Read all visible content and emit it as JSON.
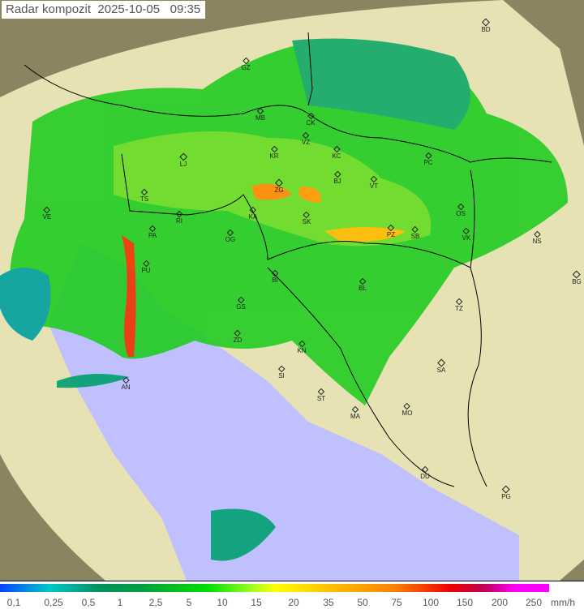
{
  "header": {
    "title": "Radar kompozit  2025-10-05   09:35"
  },
  "map": {
    "colors": {
      "sea": "#c0c0ff",
      "land": "#e8e8b8",
      "outside": "#8a8460"
    },
    "cities": [
      "GZ",
      "MB",
      "CK",
      "VZ",
      "KR",
      "KC",
      "LJ",
      "ZG",
      "BJ",
      "VT",
      "PC",
      "TS",
      "KA",
      "SK",
      "OS",
      "VE",
      "RI",
      "PA",
      "OG",
      "PZ",
      "SB",
      "VK",
      "NS",
      "BD",
      "PU",
      "BI",
      "BL",
      "BG",
      "GS",
      "TZ",
      "ZD",
      "KN",
      "SI",
      "SA",
      "AN",
      "ST",
      "MA",
      "MO",
      "DU",
      "PG"
    ]
  },
  "legend": {
    "ticks": [
      "0,1",
      "0,25",
      "0,5",
      "1",
      "2,5",
      "5",
      "10",
      "15",
      "20",
      "35",
      "50",
      "75",
      "100",
      "150",
      "200",
      "250"
    ],
    "unit": "mm/h"
  }
}
